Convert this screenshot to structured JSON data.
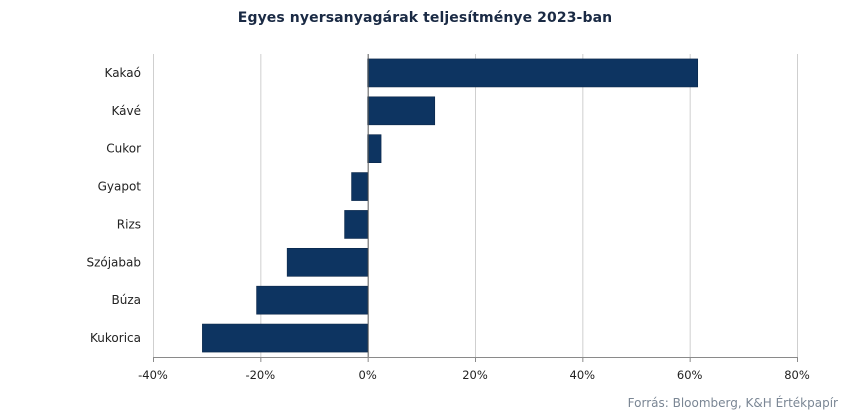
{
  "chart_data": {
    "type": "bar",
    "orientation": "horizontal",
    "title": "Egyes nyersanyagárak teljesítménye  2023-ban",
    "categories": [
      "Kakaó",
      "Kávé",
      "Cukor",
      "Gyapot",
      "Rizs",
      "Szójabab",
      "Búza",
      "Kukorica"
    ],
    "values": [
      61.5,
      12.5,
      2.5,
      -3,
      -4.3,
      -15,
      -20.7,
      -30.8
    ],
    "xlim": [
      -40,
      80
    ],
    "xticks": [
      -40,
      -20,
      0,
      20,
      40,
      60,
      80
    ],
    "xtick_labels": [
      "-40%",
      "-20%",
      "0%",
      "20%",
      "40%",
      "60%",
      "80%"
    ],
    "grid": "vertical",
    "bar_color": "#0d3461",
    "source": "Forrás: Bloomberg,  K&H Értékpapír"
  }
}
